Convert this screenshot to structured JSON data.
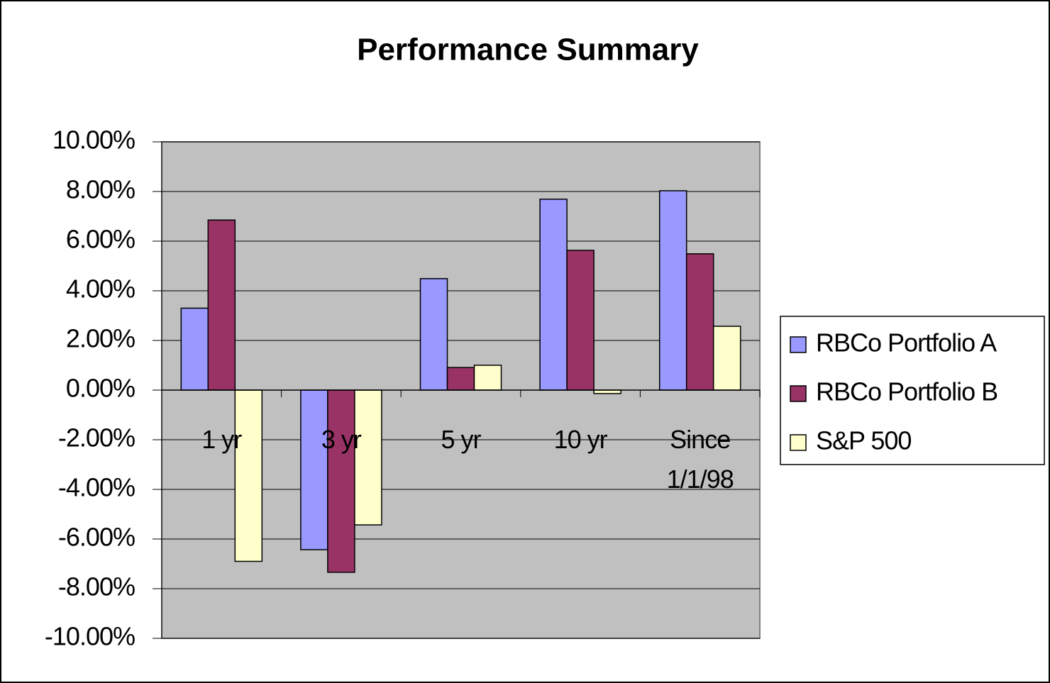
{
  "chart_data": {
    "type": "bar",
    "title": "Performance Summary",
    "categories": [
      "1 yr",
      "3 yr",
      "5 yr",
      "10 yr",
      "Since 1/1/98"
    ],
    "series": [
      {
        "name": "RBCo Portfolio A",
        "color": "#9999ff",
        "values": [
          3.3,
          -6.43,
          4.49,
          7.69,
          8.03
        ]
      },
      {
        "name": "RBCo Portfolio B",
        "color": "#993366",
        "values": [
          6.85,
          -7.34,
          0.91,
          5.63,
          5.49
        ]
      },
      {
        "name": "S&P 500",
        "color": "#ffffcc",
        "values": [
          -6.9,
          -5.43,
          1.0,
          -0.14,
          2.57
        ]
      }
    ],
    "ylim": [
      -10,
      10
    ],
    "yticks": [
      {
        "value": 10,
        "label": "10.00%"
      },
      {
        "value": 8,
        "label": "8.00%"
      },
      {
        "value": 6,
        "label": "6.00%"
      },
      {
        "value": 4,
        "label": "4.00%"
      },
      {
        "value": 2,
        "label": "2.00%"
      },
      {
        "value": 0,
        "label": "0.00%"
      },
      {
        "value": -2,
        "label": "-2.00%"
      },
      {
        "value": -4,
        "label": "-4.00%"
      },
      {
        "value": -6,
        "label": "-6.00%"
      },
      {
        "value": -8,
        "label": "-8.00%"
      },
      {
        "value": -10,
        "label": "-10.00%"
      }
    ],
    "grid": true,
    "plot_background": "#c0c0c0",
    "legend": "right"
  }
}
